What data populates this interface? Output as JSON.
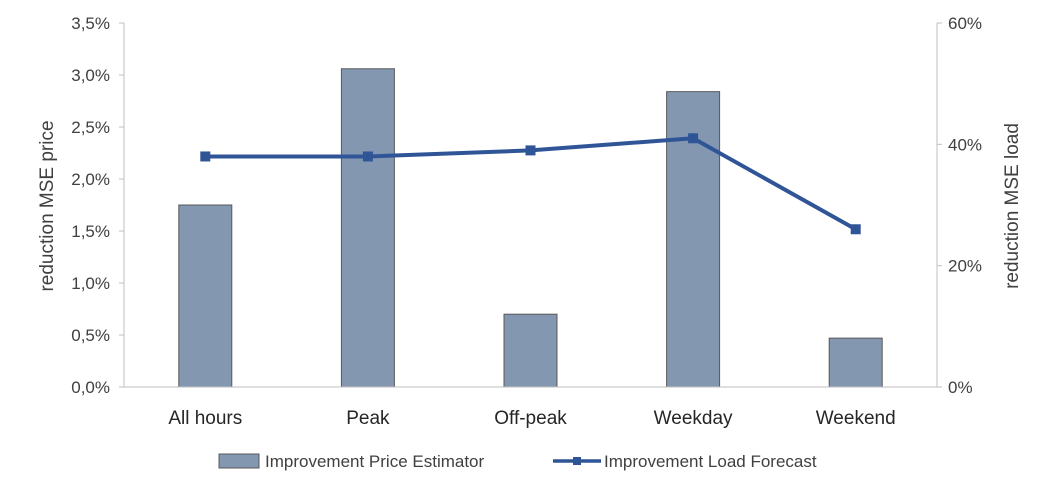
{
  "chart_data": {
    "type": "bar+line",
    "categories": [
      "All hours",
      "Peak",
      "Off-peak",
      "Weekday",
      "Weekend"
    ],
    "series": [
      {
        "name": "Improvement Price Estimator",
        "type": "bar",
        "axis": "left",
        "values": [
          1.75,
          3.06,
          0.7,
          2.84,
          0.47
        ],
        "color": "#8497b0",
        "edge_color": "#595959"
      },
      {
        "name": "Improvement Load Forecast",
        "type": "line",
        "axis": "right",
        "values": [
          38,
          38,
          39,
          41,
          26
        ],
        "color": "#2f5597"
      }
    ],
    "left_axis": {
      "label": "reduction MSE price",
      "ylim": [
        0,
        3.5
      ],
      "ticks": [
        0,
        0.5,
        1.0,
        1.5,
        2.0,
        2.5,
        3.0,
        3.5
      ],
      "tick_labels": [
        "0,0%",
        "0,5%",
        "1,0%",
        "1,5%",
        "2,0%",
        "2,5%",
        "3,0%",
        "3,5%"
      ]
    },
    "right_axis": {
      "label": "reduction MSE load",
      "ylim": [
        0,
        60
      ],
      "ticks": [
        0,
        20,
        40,
        60
      ],
      "tick_labels": [
        "0%",
        "20%",
        "40%",
        "60%"
      ]
    },
    "grid": false,
    "legend": "bottom"
  }
}
